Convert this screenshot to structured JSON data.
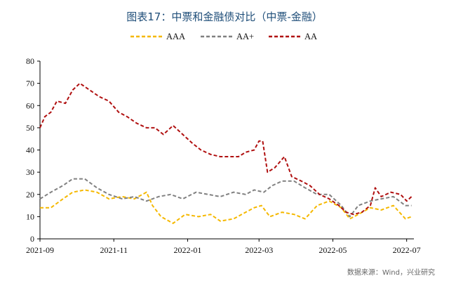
{
  "chart_data": {
    "type": "line",
    "title": "图表17：中票和金融债对比（中票-金融）",
    "source": "数据来源：Wind，兴业研究",
    "xlabel": "",
    "ylabel": "",
    "ylim": [
      0,
      80
    ],
    "yticks": [
      0,
      10,
      20,
      30,
      40,
      50,
      60,
      70,
      80
    ],
    "xlim": [
      "2021-09-01",
      "2022-07-07"
    ],
    "xticks": [
      "2021-09",
      "2021-11",
      "2022-01",
      "2022-03",
      "2022-05",
      "2022-07"
    ],
    "grid": false,
    "legend": "top",
    "series": [
      {
        "name": "AAA",
        "color": "#f5b800",
        "dash": "dashed",
        "points": [
          [
            "2021-09-01",
            14
          ],
          [
            "2021-09-10",
            14
          ],
          [
            "2021-09-20",
            18
          ],
          [
            "2021-09-28",
            21
          ],
          [
            "2021-10-08",
            22
          ],
          [
            "2021-10-18",
            21
          ],
          [
            "2021-10-28",
            18
          ],
          [
            "2021-11-08",
            19
          ],
          [
            "2021-11-18",
            18
          ],
          [
            "2021-11-28",
            21
          ],
          [
            "2021-12-03",
            15
          ],
          [
            "2021-12-10",
            10
          ],
          [
            "2021-12-20",
            7
          ],
          [
            "2021-12-30",
            11
          ],
          [
            "2022-01-10",
            10
          ],
          [
            "2022-01-20",
            11
          ],
          [
            "2022-01-28",
            8
          ],
          [
            "2022-02-08",
            9
          ],
          [
            "2022-02-18",
            12
          ],
          [
            "2022-02-25",
            14
          ],
          [
            "2022-03-03",
            15
          ],
          [
            "2022-03-10",
            10
          ],
          [
            "2022-03-20",
            12
          ],
          [
            "2022-03-30",
            11
          ],
          [
            "2022-04-08",
            9
          ],
          [
            "2022-04-18",
            15
          ],
          [
            "2022-04-28",
            17
          ],
          [
            "2022-05-08",
            14
          ],
          [
            "2022-05-15",
            9
          ],
          [
            "2022-05-22",
            11
          ],
          [
            "2022-06-01",
            14
          ],
          [
            "2022-06-10",
            13
          ],
          [
            "2022-06-20",
            15
          ],
          [
            "2022-06-30",
            9
          ],
          [
            "2022-07-05",
            10
          ]
        ]
      },
      {
        "name": "AA+",
        "color": "#808080",
        "dash": "dashed",
        "points": [
          [
            "2021-09-01",
            18
          ],
          [
            "2021-09-10",
            21
          ],
          [
            "2021-09-20",
            24
          ],
          [
            "2021-09-28",
            27
          ],
          [
            "2021-10-08",
            27
          ],
          [
            "2021-10-18",
            23
          ],
          [
            "2021-10-28",
            20
          ],
          [
            "2021-11-08",
            18
          ],
          [
            "2021-11-18",
            19
          ],
          [
            "2021-11-28",
            17
          ],
          [
            "2021-12-08",
            19
          ],
          [
            "2021-12-18",
            20
          ],
          [
            "2021-12-28",
            18
          ],
          [
            "2022-01-08",
            21
          ],
          [
            "2022-01-18",
            20
          ],
          [
            "2022-01-28",
            19
          ],
          [
            "2022-02-08",
            21
          ],
          [
            "2022-02-18",
            20
          ],
          [
            "2022-02-25",
            22
          ],
          [
            "2022-03-05",
            21
          ],
          [
            "2022-03-12",
            24
          ],
          [
            "2022-03-20",
            26
          ],
          [
            "2022-03-30",
            26
          ],
          [
            "2022-04-08",
            23
          ],
          [
            "2022-04-18",
            20
          ],
          [
            "2022-04-28",
            20
          ],
          [
            "2022-05-08",
            15
          ],
          [
            "2022-05-15",
            10
          ],
          [
            "2022-05-22",
            15
          ],
          [
            "2022-06-01",
            17
          ],
          [
            "2022-06-10",
            18
          ],
          [
            "2022-06-20",
            19
          ],
          [
            "2022-06-30",
            15
          ],
          [
            "2022-07-05",
            15
          ]
        ]
      },
      {
        "name": "AA",
        "color": "#b01010",
        "dash": "dashed",
        "points": [
          [
            "2021-09-01",
            50
          ],
          [
            "2021-09-05",
            55
          ],
          [
            "2021-09-10",
            57
          ],
          [
            "2021-09-15",
            62
          ],
          [
            "2021-09-22",
            61
          ],
          [
            "2021-09-28",
            67
          ],
          [
            "2021-10-04",
            70
          ],
          [
            "2021-10-12",
            67
          ],
          [
            "2021-10-20",
            64
          ],
          [
            "2021-10-28",
            62
          ],
          [
            "2021-11-05",
            57
          ],
          [
            "2021-11-12",
            55
          ],
          [
            "2021-11-20",
            52
          ],
          [
            "2021-11-28",
            50
          ],
          [
            "2021-12-05",
            50
          ],
          [
            "2021-12-12",
            47
          ],
          [
            "2021-12-20",
            51
          ],
          [
            "2021-12-28",
            47
          ],
          [
            "2022-01-05",
            43
          ],
          [
            "2022-01-12",
            40
          ],
          [
            "2022-01-20",
            38
          ],
          [
            "2022-01-28",
            37
          ],
          [
            "2022-02-05",
            37
          ],
          [
            "2022-02-12",
            37
          ],
          [
            "2022-02-18",
            39
          ],
          [
            "2022-02-25",
            40
          ],
          [
            "2022-03-01",
            44
          ],
          [
            "2022-03-04",
            44
          ],
          [
            "2022-03-08",
            30
          ],
          [
            "2022-03-14",
            32
          ],
          [
            "2022-03-22",
            37
          ],
          [
            "2022-03-28",
            28
          ],
          [
            "2022-04-05",
            26
          ],
          [
            "2022-04-12",
            24
          ],
          [
            "2022-04-20",
            20
          ],
          [
            "2022-04-28",
            18
          ],
          [
            "2022-05-06",
            15
          ],
          [
            "2022-05-12",
            12
          ],
          [
            "2022-05-18",
            11
          ],
          [
            "2022-05-25",
            12
          ],
          [
            "2022-06-01",
            15
          ],
          [
            "2022-06-05",
            23
          ],
          [
            "2022-06-10",
            19
          ],
          [
            "2022-06-18",
            21
          ],
          [
            "2022-06-26",
            20
          ],
          [
            "2022-07-01",
            17
          ],
          [
            "2022-07-05",
            19
          ]
        ]
      }
    ]
  }
}
